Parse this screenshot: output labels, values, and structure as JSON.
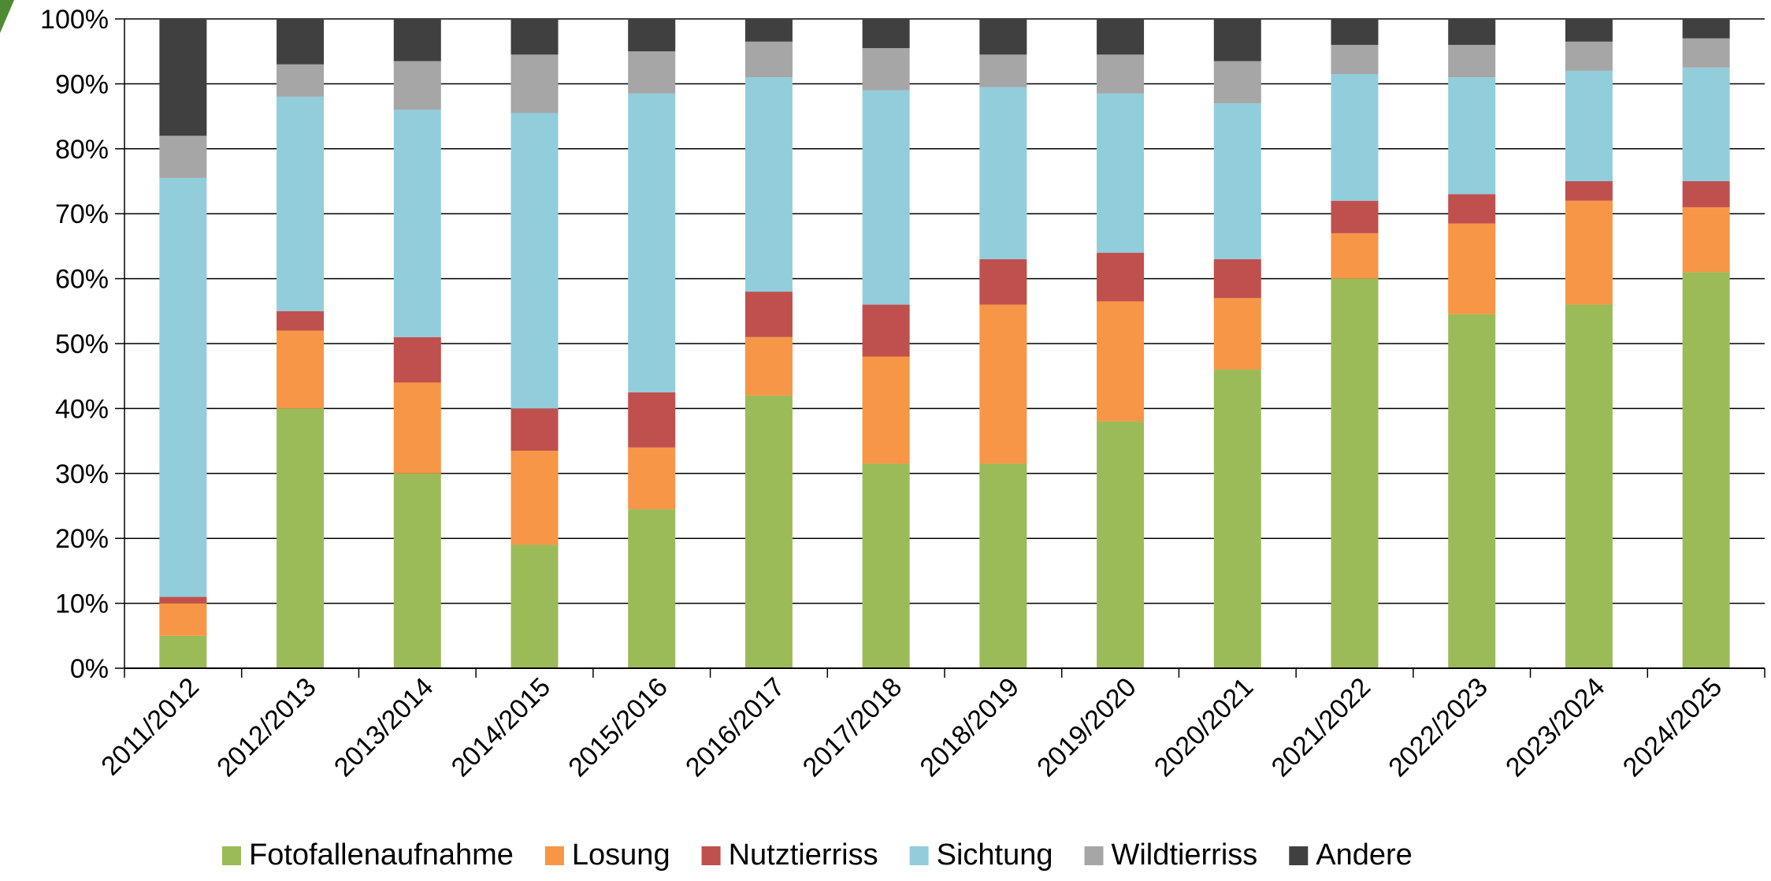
{
  "chart_data": {
    "type": "bar",
    "stacked": true,
    "percent_stacked": true,
    "categories": [
      "2011/2012",
      "2012/2013",
      "2013/2014",
      "2014/2015",
      "2015/2016",
      "2016/2017",
      "2017/2018",
      "2018/2019",
      "2019/2020",
      "2020/2021",
      "2021/2022",
      "2022/2023",
      "2023/2024",
      "2024/2025"
    ],
    "series": [
      {
        "name": "Fotofallenaufnahme",
        "color": "#9BBB59",
        "values": [
          5,
          40,
          30,
          19,
          24.5,
          42,
          31.5,
          31.5,
          38,
          46,
          60,
          54.5,
          56,
          61
        ]
      },
      {
        "name": "Losung",
        "color": "#F79646",
        "values": [
          5,
          12,
          14,
          14.5,
          9.5,
          9,
          16.5,
          24.5,
          18.5,
          11,
          7,
          14,
          16,
          10
        ]
      },
      {
        "name": "Nutztierriss",
        "color": "#C0504D",
        "values": [
          1,
          3,
          7,
          6.5,
          8.5,
          7,
          8,
          7,
          7.5,
          6,
          5,
          4.5,
          3,
          4
        ]
      },
      {
        "name": "Sichtung",
        "color": "#92CDDC",
        "values": [
          64.5,
          33,
          35,
          45.5,
          46,
          33,
          33,
          26.5,
          24.5,
          24,
          19.5,
          18,
          17,
          17.5
        ]
      },
      {
        "name": "Wildtierriss",
        "color": "#A6A6A6",
        "values": [
          6.5,
          5,
          7.5,
          9,
          6.5,
          5.5,
          6.5,
          5,
          6,
          6.5,
          4.5,
          5,
          4.5,
          4.5
        ]
      },
      {
        "name": "Andere",
        "color": "#404040",
        "values": [
          18,
          7,
          6.5,
          5.5,
          5,
          3.5,
          4.5,
          5.5,
          5.5,
          6.5,
          4,
          4,
          3.5,
          3
        ]
      }
    ],
    "y_ticks": [
      "0%",
      "10%",
      "20%",
      "30%",
      "40%",
      "50%",
      "60%",
      "70%",
      "80%",
      "90%",
      "100%"
    ],
    "ylim": [
      0,
      100
    ],
    "grid": true,
    "legend_position": "bottom",
    "title": "",
    "xlabel": "",
    "ylabel": ""
  }
}
